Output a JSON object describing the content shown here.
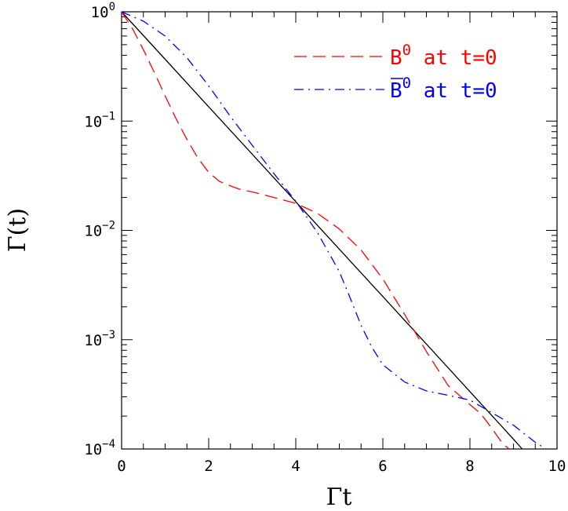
{
  "chart_data": {
    "type": "line",
    "xlabel": "Γt",
    "ylabel": "Γ(t)",
    "xlim": [
      0,
      10
    ],
    "ylim": [
      0.0001,
      1
    ],
    "yscale": "log",
    "grid": false,
    "legend_position": "top-right",
    "x_ticks": [
      0,
      2,
      4,
      6,
      8,
      10
    ],
    "y_ticks": [
      {
        "value": 1,
        "base": "10",
        "exp": "0"
      },
      {
        "value": 0.1,
        "base": "10",
        "exp": "−1"
      },
      {
        "value": 0.01,
        "base": "10",
        "exp": "−2"
      },
      {
        "value": 0.001,
        "base": "10",
        "exp": "−3"
      },
      {
        "value": 0.0001,
        "base": "10",
        "exp": "−4"
      }
    ],
    "series": [
      {
        "style": "solid",
        "color": "#000000",
        "x": [
          0,
          1,
          2,
          3,
          4,
          5,
          6,
          7,
          8,
          9,
          9.2
        ],
        "y": [
          1,
          0.368,
          0.135,
          0.0498,
          0.0183,
          0.00674,
          0.00248,
          0.000912,
          0.000335,
          0.000123,
          0.0001
        ]
      },
      {
        "name_base": "B",
        "name_sup": "0",
        "name_suffix": " at t=0",
        "style": "dashed",
        "color": "#ff0000",
        "x": [
          0,
          0.25,
          0.5,
          0.75,
          1,
          1.25,
          1.5,
          1.75,
          2,
          2.25,
          2.5,
          2.75,
          3,
          3.5,
          4,
          4.5,
          5,
          5.5,
          6,
          6.5,
          7,
          7.5,
          8,
          8.25,
          8.5,
          8.75,
          8.9
        ],
        "y": [
          1,
          0.7,
          0.45,
          0.28,
          0.17,
          0.105,
          0.068,
          0.046,
          0.034,
          0.028,
          0.0255,
          0.0235,
          0.0225,
          0.02,
          0.0177,
          0.0143,
          0.0103,
          0.0066,
          0.0036,
          0.0017,
          0.00078,
          0.00038,
          0.000255,
          0.00021,
          0.000155,
          0.000112,
          0.0001
        ]
      },
      {
        "name_base": "B",
        "name_bar": true,
        "name_sup": "0",
        "name_suffix": " at t=0",
        "style": "dashdot",
        "color": "#0000ff",
        "x": [
          0,
          0.5,
          1,
          1.5,
          2,
          2.5,
          3,
          3.5,
          4,
          4.5,
          5,
          5.25,
          5.5,
          5.75,
          6,
          6.5,
          7,
          7.5,
          8,
          8.5,
          9,
          9.5,
          9.75
        ],
        "y": [
          1,
          0.82,
          0.6,
          0.38,
          0.21,
          0.11,
          0.06,
          0.033,
          0.0185,
          0.0095,
          0.0042,
          0.0024,
          0.00135,
          0.00085,
          0.00059,
          0.00041,
          0.00034,
          0.00031,
          0.00028,
          0.000215,
          0.000165,
          0.000115,
          0.0001
        ]
      }
    ]
  }
}
